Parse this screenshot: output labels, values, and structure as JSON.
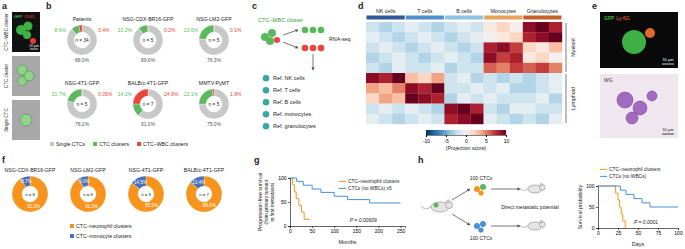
{
  "panel_labels": [
    "a",
    "b",
    "c",
    "d",
    "e",
    "f",
    "g",
    "h"
  ],
  "panel_a": {
    "rows": [
      "CTC–WBC cluster",
      "CTC cluster",
      "Single CTC"
    ],
    "stain_labels": [
      "GFP",
      "CD45"
    ],
    "scale_bar": "10 μm"
  },
  "panel_c": {
    "title": "CTC–WBC cluster",
    "method": "RNA-seq",
    "references": [
      "Ref. NK cells",
      "Ref. T cells",
      "Ref. B cells",
      "Ref. monocytes",
      "Ref. granulocytes"
    ]
  },
  "panel_e": {
    "stain_labels": [
      "GFP",
      "Ly-6G"
    ],
    "stain_label_2": "WG",
    "scale_bar": "10 μm"
  },
  "panel_h": {
    "groups": [
      "100 CTCs",
      "100 CTCs"
    ],
    "readout": "Direct metastatic potential"
  },
  "chart_data": [
    {
      "type": "pie",
      "data_labels": true,
      "categories": [
        "Single CTCs",
        "CTC clusters",
        "CTC–WBC clusters"
      ],
      "colors": [
        "#c8c8c8",
        "#5cb85c",
        "#e8453c"
      ],
      "series": [
        {
          "name": "Patients",
          "annotation": "n = 34",
          "values": [
            88.0,
            8.6,
            3.4
          ],
          "value_labels": [
            "88.0%",
            "8.6%",
            "3.4%"
          ]
        },
        {
          "name": "NSG-CDX-BR16-GFP",
          "annotation": "n = 5",
          "values": [
            89.6,
            10.2,
            0.2
          ],
          "value_labels": [
            "89.6%",
            "10.2%",
            "0.2%"
          ]
        },
        {
          "name": "NSG-LM2-GFP",
          "annotation": "n = 5",
          "values": [
            76.3,
            23.6,
            0.1
          ],
          "value_labels": [
            "76.3%",
            "23.6%",
            "0.1%"
          ]
        },
        {
          "name": "NSG-4T1-GFP",
          "annotation": "n = 5",
          "values": [
            78.2,
            21.7,
            0.05
          ],
          "value_labels": [
            "78.2%",
            "21.7%",
            "0.05%"
          ]
        },
        {
          "name": "BALB/c-4T1-GFP",
          "annotation": "n = 7",
          "values": [
            61.0,
            14.1,
            24.9
          ],
          "value_labels": [
            "61.0%",
            "14.1%",
            "24.9%"
          ]
        },
        {
          "name": "MMTV-PyMT",
          "annotation": "n = 5",
          "values": [
            75.0,
            23.1,
            1.9
          ],
          "value_labels": [
            "75.0%",
            "23.1%",
            "1.9%"
          ]
        }
      ]
    },
    {
      "type": "heatmap",
      "column_groups": [
        "NK cells",
        "T cells",
        "B cells",
        "Monocytes",
        "Granulocytes"
      ],
      "row_groups": [
        "Myeloid",
        "Lymphoid"
      ],
      "values": [
        [
          -2,
          -3,
          -2,
          -1,
          -2,
          -3,
          -2,
          -1,
          -2,
          1,
          2,
          0,
          9,
          10,
          8
        ],
        [
          -1,
          -2,
          -3,
          -2,
          -1,
          -2,
          -3,
          -2,
          -1,
          0,
          1,
          2,
          8,
          9,
          10
        ],
        [
          -2,
          -1,
          -2,
          -3,
          -2,
          -1,
          -2,
          -3,
          -2,
          8,
          9,
          7,
          2,
          1,
          3
        ],
        [
          -3,
          -2,
          -1,
          -2,
          -3,
          -2,
          -1,
          -2,
          -3,
          9,
          7,
          8,
          1,
          2,
          0
        ],
        [
          -2,
          -3,
          -1,
          -2,
          -2,
          -1,
          -3,
          -2,
          -2,
          6,
          5,
          7,
          6,
          7,
          5
        ],
        [
          9,
          8,
          10,
          3,
          2,
          4,
          -2,
          -1,
          -3,
          -2,
          -3,
          -2,
          -3,
          -2,
          -1
        ],
        [
          4,
          3,
          5,
          9,
          8,
          10,
          -2,
          -2,
          -1,
          -2,
          -1,
          -3,
          -3,
          -2,
          -1
        ],
        [
          2,
          4,
          3,
          10,
          9,
          8,
          -3,
          -1,
          -2,
          -1,
          -2,
          -2,
          -2,
          -1,
          -3
        ],
        [
          -2,
          -1,
          -2,
          -1,
          -2,
          -3,
          9,
          10,
          8,
          -2,
          -3,
          -1,
          -1,
          -2,
          -2
        ],
        [
          -1,
          -2,
          -3,
          -2,
          -1,
          -2,
          8,
          9,
          10,
          -1,
          -2,
          -3,
          -2,
          -3,
          -1
        ]
      ],
      "colorbar": {
        "title": "(Projection score)",
        "range": [
          -10,
          10
        ],
        "ticks": [
          -10,
          -5,
          0,
          5,
          10
        ]
      }
    },
    {
      "type": "pie",
      "data_labels": true,
      "categories": [
        "CTC–neutrophil clusters",
        "CTC–monocyte clusters"
      ],
      "colors": [
        "#f7941d",
        "#4a6fb5"
      ],
      "series": [
        {
          "name": "NSG-CDX-BR16-GFP",
          "annotation": "n = 8",
          "values": [
            91.3,
            8.7
          ],
          "value_labels": [
            "91.3%",
            "8.7%"
          ]
        },
        {
          "name": "NSG-LM2-GFP",
          "annotation": "n = 8",
          "values": [
            91.0,
            9.0
          ],
          "value_labels": [
            "91.0%",
            "9.0%"
          ]
        },
        {
          "name": "NSG-4T1-GFP",
          "annotation": "n = 9",
          "values": [
            85.5,
            14.5
          ],
          "value_labels": [
            "85.5%",
            "14.5%"
          ]
        },
        {
          "name": "BALB/c-4T1-GFP",
          "annotation": "n = 7",
          "values": [
            86.6,
            13.4
          ],
          "value_labels": [
            "86.6%",
            "13.4%"
          ]
        }
      ]
    },
    {
      "type": "line",
      "line_style": "step",
      "legend": "upper right",
      "x_label": "Months",
      "y_label": [
        "Progression-free survival",
        "(from primary tumour",
        "to first metastasis)"
      ],
      "annotation": "P = 0.00609",
      "xlim": [
        0,
        260
      ],
      "xticks": [
        0,
        50,
        100,
        150,
        200,
        250
      ],
      "ylim": [
        0,
        100
      ],
      "yticks": [
        0,
        50,
        100
      ],
      "series": [
        {
          "name": "CTC–neutrophil clusters",
          "color": "#f7941d",
          "x": [
            0,
            6,
            10,
            14,
            20,
            26,
            32,
            45
          ],
          "values": [
            100,
            86,
            71,
            57,
            43,
            29,
            14,
            14
          ]
        },
        {
          "name": "CTCs (no WBCs) ≥5",
          "color": "#4a90d9",
          "x": [
            0,
            15,
            30,
            50,
            70,
            100,
            130,
            180,
            250
          ],
          "values": [
            100,
            93,
            85,
            77,
            70,
            62,
            55,
            48,
            48
          ]
        }
      ]
    },
    {
      "type": "line",
      "line_style": "step",
      "legend": "top",
      "x_label": "Days",
      "y_label": [
        "Survival probability"
      ],
      "annotation": "P = 0.0001",
      "xlim": [
        0,
        100
      ],
      "xticks": [
        0,
        25,
        50,
        75,
        100
      ],
      "ylim": [
        0,
        100
      ],
      "yticks": [
        0,
        50,
        100
      ],
      "series": [
        {
          "name": "CTC–neutrophil clusters",
          "color": "#f7941d",
          "x": [
            0,
            22,
            25,
            27,
            29,
            31,
            34
          ],
          "values": [
            100,
            83,
            67,
            50,
            33,
            17,
            0
          ]
        },
        {
          "name": "CTCs (no WBCs)",
          "color": "#4a90d9",
          "x": [
            0,
            28,
            35,
            45,
            55,
            65,
            100
          ],
          "values": [
            100,
            90,
            80,
            70,
            60,
            50,
            50
          ]
        }
      ]
    }
  ]
}
